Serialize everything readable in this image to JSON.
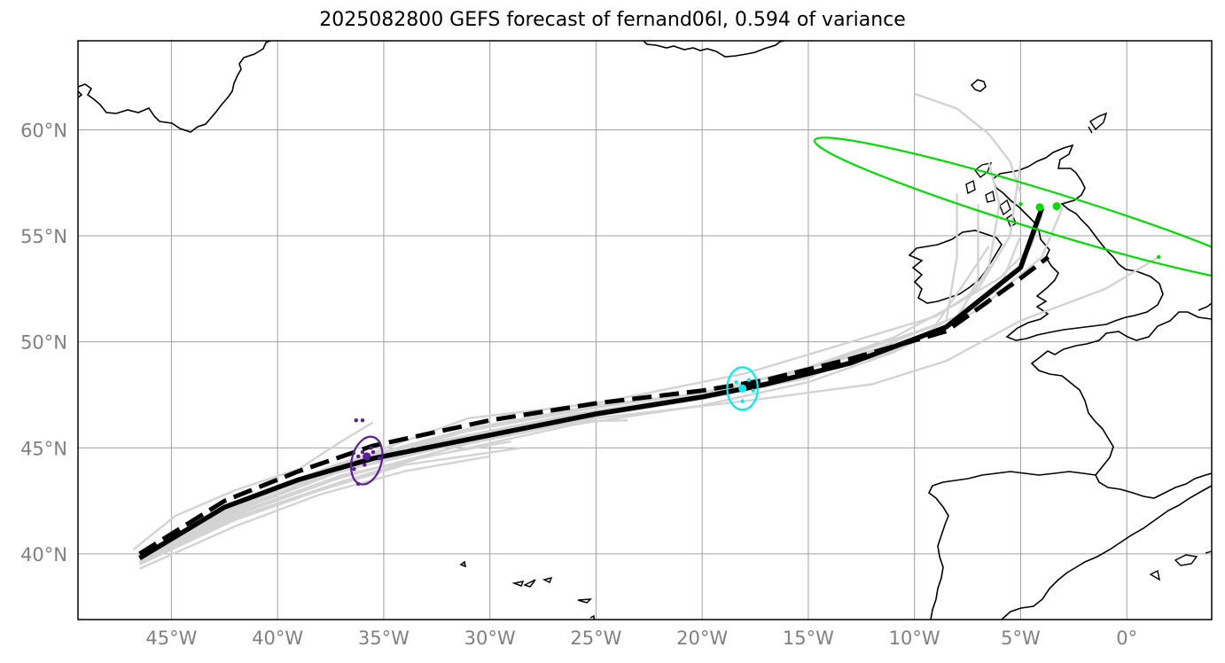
{
  "title": "2025082800 GEFS forecast of fernand06l, 0.594 of variance",
  "map": {
    "lon_range": [
      -49.4,
      4.0
    ],
    "lat_range": [
      36.9,
      64.2
    ],
    "x_ticks": [
      {
        "lon": -45,
        "label": "45°W"
      },
      {
        "lon": -40,
        "label": "40°W"
      },
      {
        "lon": -35,
        "label": "35°W"
      },
      {
        "lon": -30,
        "label": "30°W"
      },
      {
        "lon": -25,
        "label": "25°W"
      },
      {
        "lon": -20,
        "label": "20°W"
      },
      {
        "lon": -15,
        "label": "15°W"
      },
      {
        "lon": -10,
        "label": "10°W"
      },
      {
        "lon": -5,
        "label": "5°W"
      },
      {
        "lon": 0,
        "label": "0°"
      }
    ],
    "y_ticks": [
      {
        "lat": 40,
        "label": "40°N"
      },
      {
        "lat": 45,
        "label": "45°N"
      },
      {
        "lat": 50,
        "label": "50°N"
      },
      {
        "lat": 55,
        "label": "55°N"
      },
      {
        "lat": 60,
        "label": "60°N"
      }
    ],
    "colors": {
      "member_track": "#d3d3d3",
      "mean_track": "#000000",
      "gridline": "#a0a0a0",
      "coastline": "#000000",
      "ellipse_purple": "#5b1e96",
      "ellipse_cyan": "#00eeee",
      "ellipse_green": "#00dd00"
    },
    "mean_track": [
      [
        -46.5,
        39.8
      ],
      [
        -42.5,
        42.2
      ],
      [
        -39,
        43.5
      ],
      [
        -35.5,
        44.5
      ],
      [
        -30,
        45.6
      ],
      [
        -25,
        46.6
      ],
      [
        -20,
        47.4
      ],
      [
        -17,
        48
      ],
      [
        -13,
        49
      ],
      [
        -8.5,
        50.7
      ],
      [
        -7,
        51.9
      ],
      [
        -5,
        53.5
      ],
      [
        -4,
        56.3
      ]
    ],
    "mean_track_dashed": [
      [
        -46.5,
        40
      ],
      [
        -42.5,
        42.5
      ],
      [
        -39,
        43.9
      ],
      [
        -35.5,
        45.1
      ],
      [
        -30,
        46.3
      ],
      [
        -25,
        47.1
      ],
      [
        -20,
        47.7
      ],
      [
        -17,
        48.2
      ],
      [
        -13,
        49.2
      ],
      [
        -8.5,
        50.5
      ],
      [
        -5,
        53
      ],
      [
        -3.7,
        54
      ]
    ],
    "members": [
      [
        [
          -46.8,
          40.2
        ],
        [
          -44.8,
          41.8
        ],
        [
          -42,
          43
        ],
        [
          -39,
          44
        ],
        [
          -37,
          45.3
        ],
        [
          -35.5,
          46.2
        ]
      ],
      [
        [
          -46.5,
          39.7
        ],
        [
          -42,
          42
        ],
        [
          -38,
          43.6
        ],
        [
          -34,
          44.7
        ],
        [
          -29,
          45.6
        ]
      ],
      [
        [
          -46.5,
          39.5
        ],
        [
          -42,
          41.6
        ],
        [
          -38,
          43
        ],
        [
          -34,
          44.2
        ],
        [
          -28.5,
          45
        ]
      ],
      [
        [
          -46.5,
          39.3
        ],
        [
          -42,
          41.3
        ],
        [
          -38,
          42.8
        ],
        [
          -34,
          43.9
        ],
        [
          -30,
          44.6
        ]
      ],
      [
        [
          -46.5,
          39.9
        ],
        [
          -42,
          42.3
        ],
        [
          -38,
          43.7
        ],
        [
          -34,
          45
        ],
        [
          -28,
          46.2
        ],
        [
          -23.5,
          46.3
        ]
      ],
      [
        [
          -46.5,
          40
        ],
        [
          -41,
          42.6
        ],
        [
          -36,
          44.6
        ],
        [
          -31,
          46.4
        ],
        [
          -25,
          47.1
        ],
        [
          -22,
          47.7
        ],
        [
          -18,
          48.5
        ],
        [
          -13,
          50
        ],
        [
          -9,
          51.2
        ],
        [
          -7,
          52.5
        ],
        [
          -5.5,
          55
        ],
        [
          -5,
          58.5
        ]
      ],
      [
        [
          -46.5,
          39.8
        ],
        [
          -42,
          42
        ],
        [
          -37,
          44
        ],
        [
          -32,
          45.4
        ],
        [
          -26,
          46.6
        ],
        [
          -20,
          47.3
        ],
        [
          -15,
          48.3
        ],
        [
          -11,
          50
        ],
        [
          -8,
          51.2
        ],
        [
          -6.5,
          53.5
        ],
        [
          -6,
          56.5
        ],
        [
          -6.5,
          58.5
        ]
      ],
      [
        [
          -46.5,
          39.6
        ],
        [
          -42,
          41.8
        ],
        [
          -37,
          43.6
        ],
        [
          -31,
          45.2
        ],
        [
          -25,
          46.4
        ],
        [
          -18,
          47.2
        ],
        [
          -12,
          48
        ],
        [
          -8.5,
          49.1
        ],
        [
          -5,
          51
        ],
        [
          -1,
          52.5
        ],
        [
          1.5,
          54
        ]
      ],
      [
        [
          -46.5,
          39.8
        ],
        [
          -42,
          42.1
        ],
        [
          -37,
          44
        ],
        [
          -31,
          45.6
        ],
        [
          -25,
          46.7
        ],
        [
          -20,
          47.4
        ],
        [
          -15,
          48.5
        ],
        [
          -11,
          49.5
        ],
        [
          -7,
          51.5
        ],
        [
          -4,
          54
        ],
        [
          -3,
          56.4
        ]
      ],
      [
        [
          -46.5,
          39.9
        ],
        [
          -42,
          42.2
        ],
        [
          -37,
          44.2
        ],
        [
          -31,
          45.8
        ],
        [
          -25,
          46.9
        ],
        [
          -20,
          47.6
        ],
        [
          -14,
          49
        ],
        [
          -9,
          50.5
        ],
        [
          -6,
          52.5
        ],
        [
          -5,
          55
        ]
      ],
      [
        [
          -46.5,
          39.7
        ],
        [
          -42,
          42
        ],
        [
          -37,
          43.9
        ],
        [
          -31,
          45.3
        ],
        [
          -25,
          46.5
        ],
        [
          -20,
          47.3
        ],
        [
          -15,
          48.4
        ],
        [
          -11,
          49.6
        ],
        [
          -8,
          51
        ],
        [
          -7,
          53
        ],
        [
          -7,
          56.5
        ]
      ],
      [
        [
          -46.5,
          39.9
        ],
        [
          -42,
          42.4
        ],
        [
          -37,
          44.3
        ],
        [
          -31,
          45.9
        ],
        [
          -25,
          47
        ],
        [
          -18,
          47.8
        ],
        [
          -13,
          49.4
        ],
        [
          -9,
          50.8
        ],
        [
          -7.5,
          53
        ],
        [
          -6.5,
          54.5
        ]
      ],
      [
        [
          -46.5,
          40
        ],
        [
          -42,
          42.3
        ],
        [
          -37,
          44.1
        ],
        [
          -31,
          45.5
        ],
        [
          -26,
          46.6
        ],
        [
          -20,
          47.5
        ],
        [
          -15,
          48.8
        ],
        [
          -11,
          50.2
        ],
        [
          -8,
          51.8
        ],
        [
          -6,
          53
        ],
        [
          -4.5,
          54.5
        ],
        [
          -4,
          56
        ]
      ],
      [
        [
          -46.5,
          39.7
        ],
        [
          -42,
          41.9
        ],
        [
          -37,
          43.7
        ],
        [
          -31,
          45
        ],
        [
          -26,
          46.1
        ],
        [
          -20,
          47
        ],
        [
          -15,
          48.1
        ],
        [
          -11,
          49.5
        ],
        [
          -8.5,
          51
        ],
        [
          -8,
          54
        ],
        [
          -8,
          57
        ]
      ],
      [
        [
          -46.5,
          39.6
        ],
        [
          -42,
          41.7
        ],
        [
          -37,
          43.4
        ],
        [
          -33,
          44.6
        ],
        [
          -29,
          45.3
        ]
      ],
      [
        [
          -10,
          61.7
        ],
        [
          -8,
          61
        ],
        [
          -6.5,
          59.8
        ],
        [
          -5.5,
          58.5
        ],
        [
          -5,
          57
        ]
      ]
    ],
    "ellipses": [
      {
        "name": "purple",
        "center": [
          -35.8,
          44.4
        ],
        "rx_deg": 0.7,
        "ry_deg": 1.15,
        "rotation": 15,
        "color": "#5b1e96",
        "dot": [
          -35.8,
          44.6
        ],
        "points": [
          [
            -36.3,
            46.3
          ],
          [
            -36,
            46.3
          ],
          [
            -36.2,
            43.3
          ],
          [
            -35.2,
            44.5
          ],
          [
            -36.4,
            44
          ],
          [
            -35.6,
            45
          ],
          [
            -36,
            44.8
          ],
          [
            -35.9,
            44.2
          ],
          [
            -35.5,
            44.8
          ],
          [
            -36.2,
            44.6
          ]
        ]
      },
      {
        "name": "cyan",
        "center": [
          -18.1,
          47.8
        ],
        "rx_deg": 0.72,
        "ry_deg": 1.0,
        "rotation": 0,
        "color": "#00eeee",
        "dot": [
          -18.1,
          47.8
        ],
        "points": [
          [
            -17.6,
            47.7
          ],
          [
            -18.1,
            47.2
          ],
          [
            -18.4,
            48.1
          ],
          [
            -17.8,
            48.2
          ]
        ]
      },
      {
        "name": "green",
        "center": [
          -3.9,
          56.2
        ],
        "rx_deg": 11.3,
        "ry_deg": 0.95,
        "rotation": 17,
        "color": "#00dd00",
        "dot": [
          -4.1,
          56.35
        ],
        "dot2": [
          -3.3,
          56.4
        ],
        "points": [
          [
            1.5,
            54
          ],
          [
            -5,
            56.5
          ]
        ]
      }
    ]
  }
}
